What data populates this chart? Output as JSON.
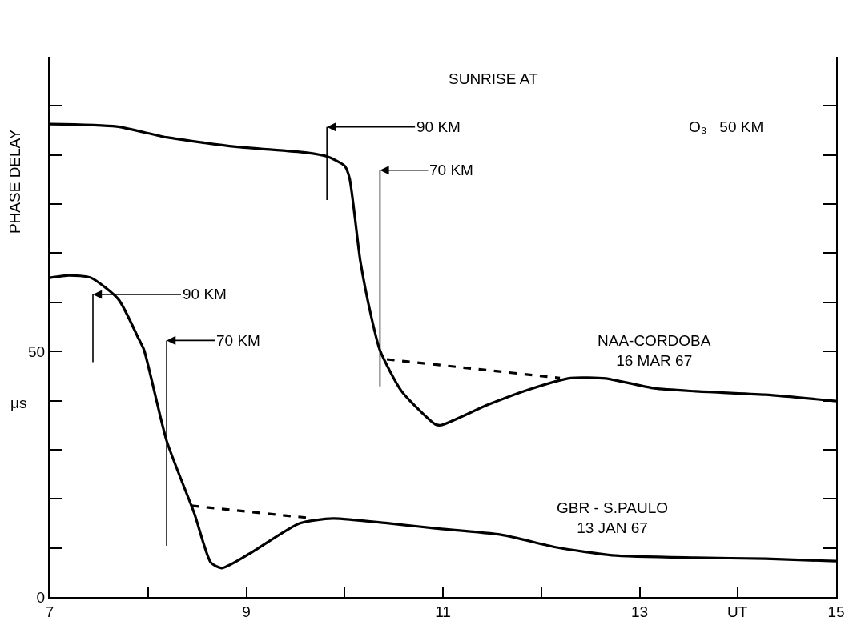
{
  "chart_data": {
    "type": "line",
    "ylabel": "PHASE DELAY",
    "xlabel": "UT",
    "xlim": [
      7,
      15
    ],
    "xticks": [
      7,
      {
        "value": 8,
        "label": null
      },
      9,
      {
        "value": 10,
        "label": null
      },
      11,
      {
        "value": 12,
        "label": null
      },
      13,
      {
        "value": 14,
        "label": null
      },
      15
    ],
    "ylim": [
      0,
      110
    ],
    "yticks": [
      0,
      {
        "value": 10,
        "label": null
      },
      {
        "value": 20,
        "label": null
      },
      {
        "value": 30,
        "label": null
      },
      {
        "value": 40,
        "label": null
      },
      50,
      {
        "value": 60,
        "label": null
      },
      {
        "value": 70,
        "label": null
      },
      {
        "value": 80,
        "label": null
      },
      {
        "value": 90,
        "label": null
      },
      {
        "value": 100,
        "label": null
      }
    ],
    "series": [
      {
        "name": "NAA-CORDOBA\n16 MAR 67",
        "color": "#000000",
        "x": [
          7,
          7.68,
          8.19,
          8.89,
          9.6,
          9.82,
          10.0,
          10.05,
          10.16,
          10.27,
          10.36,
          10.58,
          10.92,
          10.98,
          11.45,
          11.88,
          12.3,
          12.66,
          13.15,
          13.57,
          14.28,
          15
        ],
        "values": [
          96.3,
          95.8,
          93.6,
          91.7,
          90.5,
          89.7,
          87.8,
          85.3,
          68.4,
          57.2,
          50.2,
          41.9,
          35.2,
          35.0,
          39.1,
          42.3,
          44.6,
          44.5,
          42.5,
          41.9,
          41.2,
          39.9
        ]
      },
      {
        "color": "#000000",
        "line_style": "dashed",
        "x": [
          10.43,
          12.19
        ],
        "values": [
          48.4,
          44.6
        ]
      },
      {
        "name": "GBR - S.PAULO\n13 JAN 67",
        "color": "#000000",
        "x": [
          7,
          7.2,
          7.42,
          7.7,
          7.9,
          7.96,
          8.19,
          8.47,
          8.64,
          8.75,
          9.03,
          9.54,
          9.88,
          10.45,
          10.92,
          11.59,
          12.16,
          12.72,
          13.57,
          14.28,
          15
        ],
        "values": [
          65.0,
          65.5,
          65.0,
          60.6,
          52.8,
          50.3,
          31.8,
          17.1,
          7.0,
          5.9,
          8.8,
          15.0,
          16.0,
          15.0,
          14.0,
          12.7,
          10.1,
          8.5,
          8.0,
          7.8,
          7.3
        ]
      },
      {
        "color": "#000000",
        "line_style": "dashed",
        "x": [
          8.44,
          9.64
        ],
        "values": [
          18.6,
          16.1
        ]
      }
    ],
    "ref_lines": [
      {
        "axis": "x",
        "value": 9.82,
        "label": "90 KM",
        "color": "#000000"
      },
      {
        "axis": "x",
        "value": 10.36,
        "label": "70 KM",
        "color": "#000000"
      },
      {
        "axis": "x",
        "value": 7.44,
        "label": "90 KM",
        "color": "#000000"
      },
      {
        "axis": "x",
        "value": 8.19,
        "label": "70 KM",
        "color": "#000000"
      }
    ],
    "annotations": [
      "SUNRISE AT",
      "O₃   50 KM",
      "μs"
    ]
  }
}
